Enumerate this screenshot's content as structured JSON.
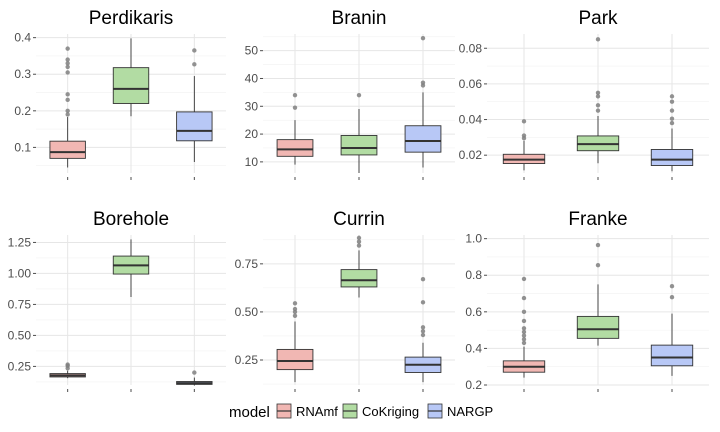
{
  "legend": {
    "title": "model",
    "entries": [
      {
        "name": "RNAmf",
        "fill": "#f1b7b3"
      },
      {
        "name": "CoKriging",
        "fill": "#b2dca3"
      },
      {
        "name": "NARGP",
        "fill": "#b8c8f6"
      }
    ],
    "placement": "bottom"
  },
  "style": {
    "box_stroke": "#333333",
    "outlier_color": "#7f7f7f",
    "grid_major": "#e6e6e6",
    "grid_minor": "#f2f2f2"
  },
  "chart_data": [
    {
      "type": "box",
      "title": "Perdikaris",
      "ylim": [
        0.03,
        0.41
      ],
      "yticks": [
        0.1,
        0.2,
        0.3,
        0.4
      ],
      "ytick_labels": [
        "0.1",
        "0.2",
        "0.3",
        "0.4"
      ],
      "grid": true,
      "boxes": [
        {
          "series": "RNAmf",
          "whisker_low": 0.045,
          "q1": 0.07,
          "median": 0.087,
          "q3": 0.117,
          "whisker_high": 0.183,
          "outliers": [
            0.19,
            0.2,
            0.23,
            0.245,
            0.305,
            0.32,
            0.33,
            0.34,
            0.37
          ]
        },
        {
          "series": "CoKriging",
          "whisker_low": 0.185,
          "q1": 0.22,
          "median": 0.26,
          "q3": 0.318,
          "whisker_high": 0.398,
          "outliers": []
        },
        {
          "series": "NARGP",
          "whisker_low": 0.06,
          "q1": 0.118,
          "median": 0.145,
          "q3": 0.197,
          "whisker_high": 0.295,
          "outliers": [
            0.327,
            0.365
          ]
        }
      ]
    },
    {
      "type": "box",
      "title": "Branin",
      "ylim": [
        6,
        56
      ],
      "yticks": [
        10,
        20,
        30,
        40,
        50
      ],
      "ytick_labels": [
        "10",
        "20",
        "30",
        "40",
        "50"
      ],
      "grid": true,
      "boxes": [
        {
          "series": "RNAmf",
          "whisker_low": 9,
          "q1": 12,
          "median": 14.5,
          "q3": 18,
          "whisker_high": 25,
          "outliers": [
            29.5,
            34
          ]
        },
        {
          "series": "CoKriging",
          "whisker_low": 6,
          "q1": 12.5,
          "median": 15,
          "q3": 19.5,
          "whisker_high": 29,
          "outliers": [
            34
          ]
        },
        {
          "series": "NARGP",
          "whisker_low": 8,
          "q1": 13.5,
          "median": 17.5,
          "q3": 23,
          "whisker_high": 35,
          "outliers": [
            37.5,
            38.5,
            54.5
          ]
        }
      ]
    },
    {
      "type": "box",
      "title": "Park",
      "ylim": [
        0.01,
        0.088
      ],
      "yticks": [
        0.02,
        0.04,
        0.06,
        0.08
      ],
      "ytick_labels": [
        "0.02",
        "0.04",
        "0.06",
        "0.08"
      ],
      "grid": true,
      "boxes": [
        {
          "series": "RNAmf",
          "whisker_low": 0.0115,
          "q1": 0.0153,
          "median": 0.0175,
          "q3": 0.0205,
          "whisker_high": 0.028,
          "outliers": [
            0.0295,
            0.031,
            0.039
          ]
        },
        {
          "series": "CoKriging",
          "whisker_low": 0.0155,
          "q1": 0.0225,
          "median": 0.0262,
          "q3": 0.0308,
          "whisker_high": 0.042,
          "outliers": [
            0.045,
            0.048,
            0.053,
            0.055,
            0.085
          ]
        },
        {
          "series": "NARGP",
          "whisker_low": 0.011,
          "q1": 0.0142,
          "median": 0.0175,
          "q3": 0.0232,
          "whisker_high": 0.035,
          "outliers": [
            0.038,
            0.0405,
            0.045,
            0.05,
            0.053
          ]
        }
      ]
    },
    {
      "type": "box",
      "title": "Borehole",
      "ylim": [
        0.1,
        1.31
      ],
      "yticks": [
        0.25,
        0.5,
        0.75,
        1.0,
        1.25
      ],
      "ytick_labels": [
        "0.25",
        "0.50",
        "0.75",
        "1.00",
        "1.25"
      ],
      "grid": true,
      "boxes": [
        {
          "series": "RNAmf",
          "whisker_low": 0.155,
          "q1": 0.165,
          "median": 0.178,
          "q3": 0.192,
          "whisker_high": 0.215,
          "outliers": [
            0.235,
            0.255,
            0.265
          ]
        },
        {
          "series": "CoKriging",
          "whisker_low": 0.81,
          "q1": 0.995,
          "median": 1.065,
          "q3": 1.14,
          "whisker_high": 1.275,
          "outliers": []
        },
        {
          "series": "NARGP",
          "whisker_low": 0.095,
          "q1": 0.105,
          "median": 0.115,
          "q3": 0.128,
          "whisker_high": 0.16,
          "outliers": [
            0.2
          ]
        }
      ]
    },
    {
      "type": "box",
      "title": "Currin",
      "ylim": [
        0.12,
        0.9
      ],
      "yticks": [
        0.25,
        0.5,
        0.75
      ],
      "ytick_labels": [
        "0.25",
        "0.50",
        "0.75"
      ],
      "grid": true,
      "boxes": [
        {
          "series": "RNAmf",
          "whisker_low": 0.135,
          "q1": 0.2,
          "median": 0.245,
          "q3": 0.305,
          "whisker_high": 0.45,
          "outliers": [
            0.48,
            0.5,
            0.515,
            0.545
          ]
        },
        {
          "series": "CoKriging",
          "whisker_low": 0.575,
          "q1": 0.63,
          "median": 0.665,
          "q3": 0.72,
          "whisker_high": 0.82,
          "outliers": [
            0.845,
            0.865,
            0.885
          ]
        },
        {
          "series": "NARGP",
          "whisker_low": 0.135,
          "q1": 0.185,
          "median": 0.225,
          "q3": 0.265,
          "whisker_high": 0.34,
          "outliers": [
            0.38,
            0.4,
            0.42,
            0.55,
            0.67
          ]
        }
      ]
    },
    {
      "type": "box",
      "title": "Franke",
      "ylim": [
        0.2,
        1.02
      ],
      "yticks": [
        0.2,
        0.4,
        0.6,
        0.8,
        1.0
      ],
      "ytick_labels": [
        "0.2",
        "0.4",
        "0.6",
        "0.8",
        "1.0"
      ],
      "grid": true,
      "boxes": [
        {
          "series": "RNAmf",
          "whisker_low": 0.24,
          "q1": 0.27,
          "median": 0.3,
          "q3": 0.332,
          "whisker_high": 0.41,
          "outliers": [
            0.43,
            0.45,
            0.47,
            0.49,
            0.51,
            0.55,
            0.6,
            0.675,
            0.78
          ]
        },
        {
          "series": "CoKriging",
          "whisker_low": 0.415,
          "q1": 0.455,
          "median": 0.505,
          "q3": 0.575,
          "whisker_high": 0.75,
          "outliers": [
            0.855,
            0.965
          ]
        },
        {
          "series": "NARGP",
          "whisker_low": 0.25,
          "q1": 0.305,
          "median": 0.35,
          "q3": 0.418,
          "whisker_high": 0.59,
          "outliers": [
            0.68,
            0.74
          ]
        }
      ]
    }
  ]
}
